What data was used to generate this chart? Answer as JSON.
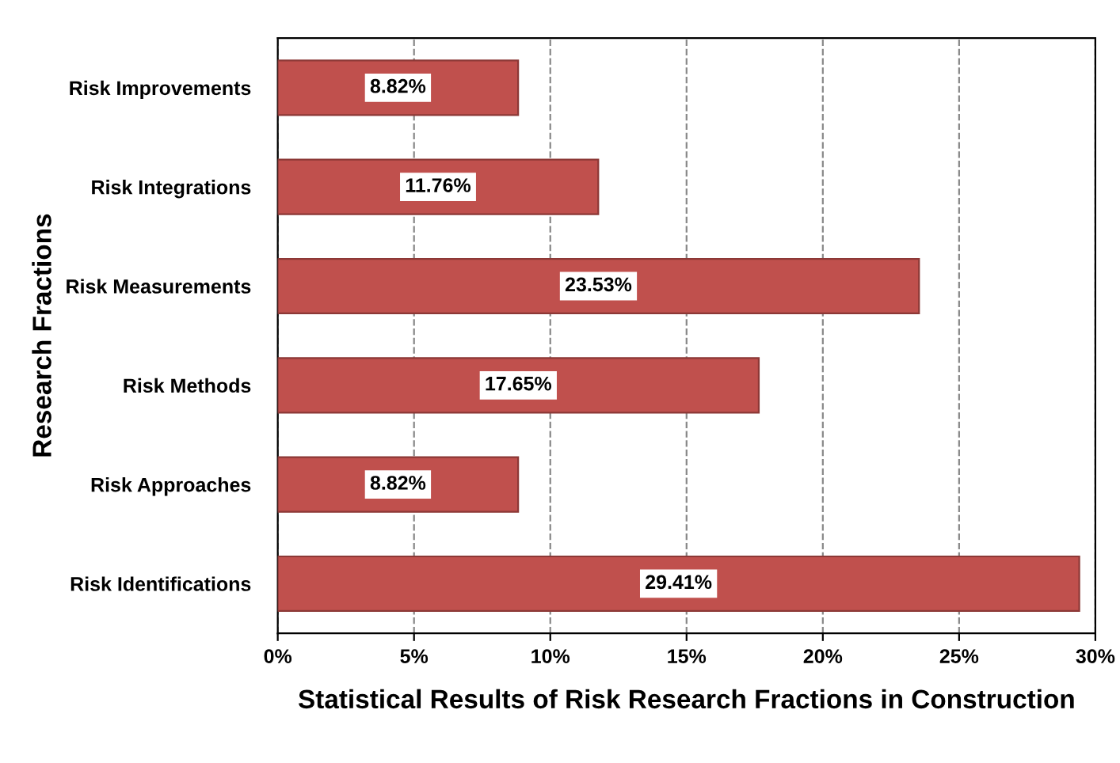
{
  "chart_data": {
    "type": "bar",
    "orientation": "horizontal",
    "xlabel": "Statistical Results of Risk Research Fractions in Construction",
    "ylabel": "Research Fractions",
    "categories": [
      "Risk Improvements",
      "Risk Integrations",
      "Risk Measurements",
      "Risk Methods",
      "Risk Approaches",
      "Risk Identifications"
    ],
    "values": [
      8.82,
      11.76,
      23.53,
      17.65,
      8.82,
      29.41
    ],
    "value_labels": [
      "8.82%",
      "11.76%",
      "23.53%",
      "17.65%",
      "8.82%",
      "29.41%"
    ],
    "color": "#c0504d",
    "xlim": [
      0,
      30
    ],
    "xticks": [
      {
        "value": 0,
        "label": "0%"
      },
      {
        "value": 5,
        "label": "5%"
      },
      {
        "value": 10,
        "label": "10%"
      },
      {
        "value": 15,
        "label": "15%"
      },
      {
        "value": 20,
        "label": "20%"
      },
      {
        "value": 25,
        "label": "25%"
      },
      {
        "value": 30,
        "label": "30%"
      }
    ],
    "grid": "x",
    "legend": false
  }
}
